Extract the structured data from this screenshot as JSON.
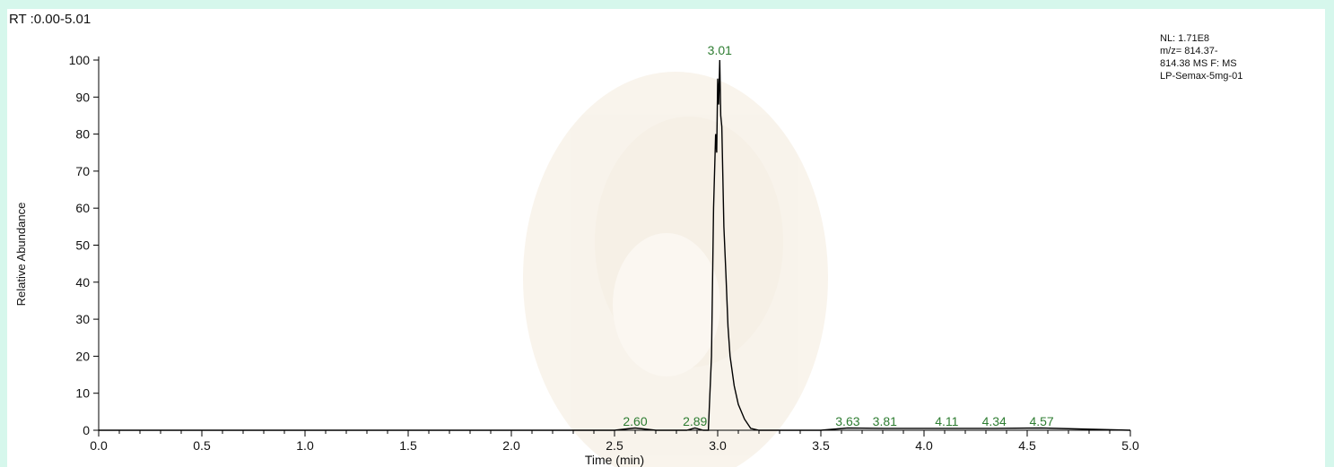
{
  "chart_data": {
    "type": "line",
    "header": "RT :0.00-5.01",
    "info_lines": [
      "NL: 1.71E8",
      "m/z= 814.37-",
      "814.38 MS  F: MS",
      "LP-Semax-5mg-01"
    ],
    "xlabel": "Time (min)",
    "ylabel": "Relative Abundance",
    "xlim": [
      0.0,
      5.0
    ],
    "ylim": [
      0,
      100
    ],
    "xticks": [
      "0.0",
      "0.5",
      "1.0",
      "1.5",
      "2.0",
      "2.5",
      "3.0",
      "3.5",
      "4.0",
      "4.5",
      "5.0"
    ],
    "yticks": [
      "0",
      "10",
      "20",
      "30",
      "40",
      "50",
      "60",
      "70",
      "80",
      "90",
      "100"
    ],
    "peak_labels": [
      {
        "text": "3.01",
        "x": 3.01,
        "y": 100
      },
      {
        "text": "2.60",
        "x": 2.6,
        "y": 0.6
      },
      {
        "text": "2.89",
        "x": 2.89,
        "y": 0.6
      },
      {
        "text": "3.63",
        "x": 3.63,
        "y": 0.6
      },
      {
        "text": "3.81",
        "x": 3.81,
        "y": 0.5
      },
      {
        "text": "4.11",
        "x": 4.11,
        "y": 0.5
      },
      {
        "text": "4.34",
        "x": 4.34,
        "y": 0.5
      },
      {
        "text": "4.57",
        "x": 4.57,
        "y": 0.6
      }
    ],
    "series": [
      {
        "x": [
          0.0,
          2.5,
          2.6,
          2.7,
          2.85,
          2.89,
          2.93,
          2.955,
          2.97,
          2.98,
          2.99,
          2.995,
          3.0,
          3.005,
          3.01,
          3.015,
          3.02,
          3.03,
          3.04,
          3.05,
          3.06,
          3.08,
          3.1,
          3.13,
          3.16,
          3.2,
          3.5,
          3.63,
          3.81,
          4.11,
          4.34,
          4.57,
          5.0
        ],
        "y": [
          0,
          0,
          0.6,
          0,
          0,
          0.6,
          0,
          0,
          20,
          60,
          80,
          75,
          95,
          88,
          100,
          85,
          82,
          55,
          42,
          28,
          20,
          12,
          7,
          3,
          0.5,
          0,
          0,
          0.6,
          0.5,
          0.5,
          0.5,
          0.6,
          0
        ],
        "color": "#000000"
      }
    ],
    "grid": false,
    "colors": {
      "background": "#d6f7ec",
      "plot": "#ffffff",
      "line": "#000000",
      "peak_label": "#2e7d32"
    }
  }
}
